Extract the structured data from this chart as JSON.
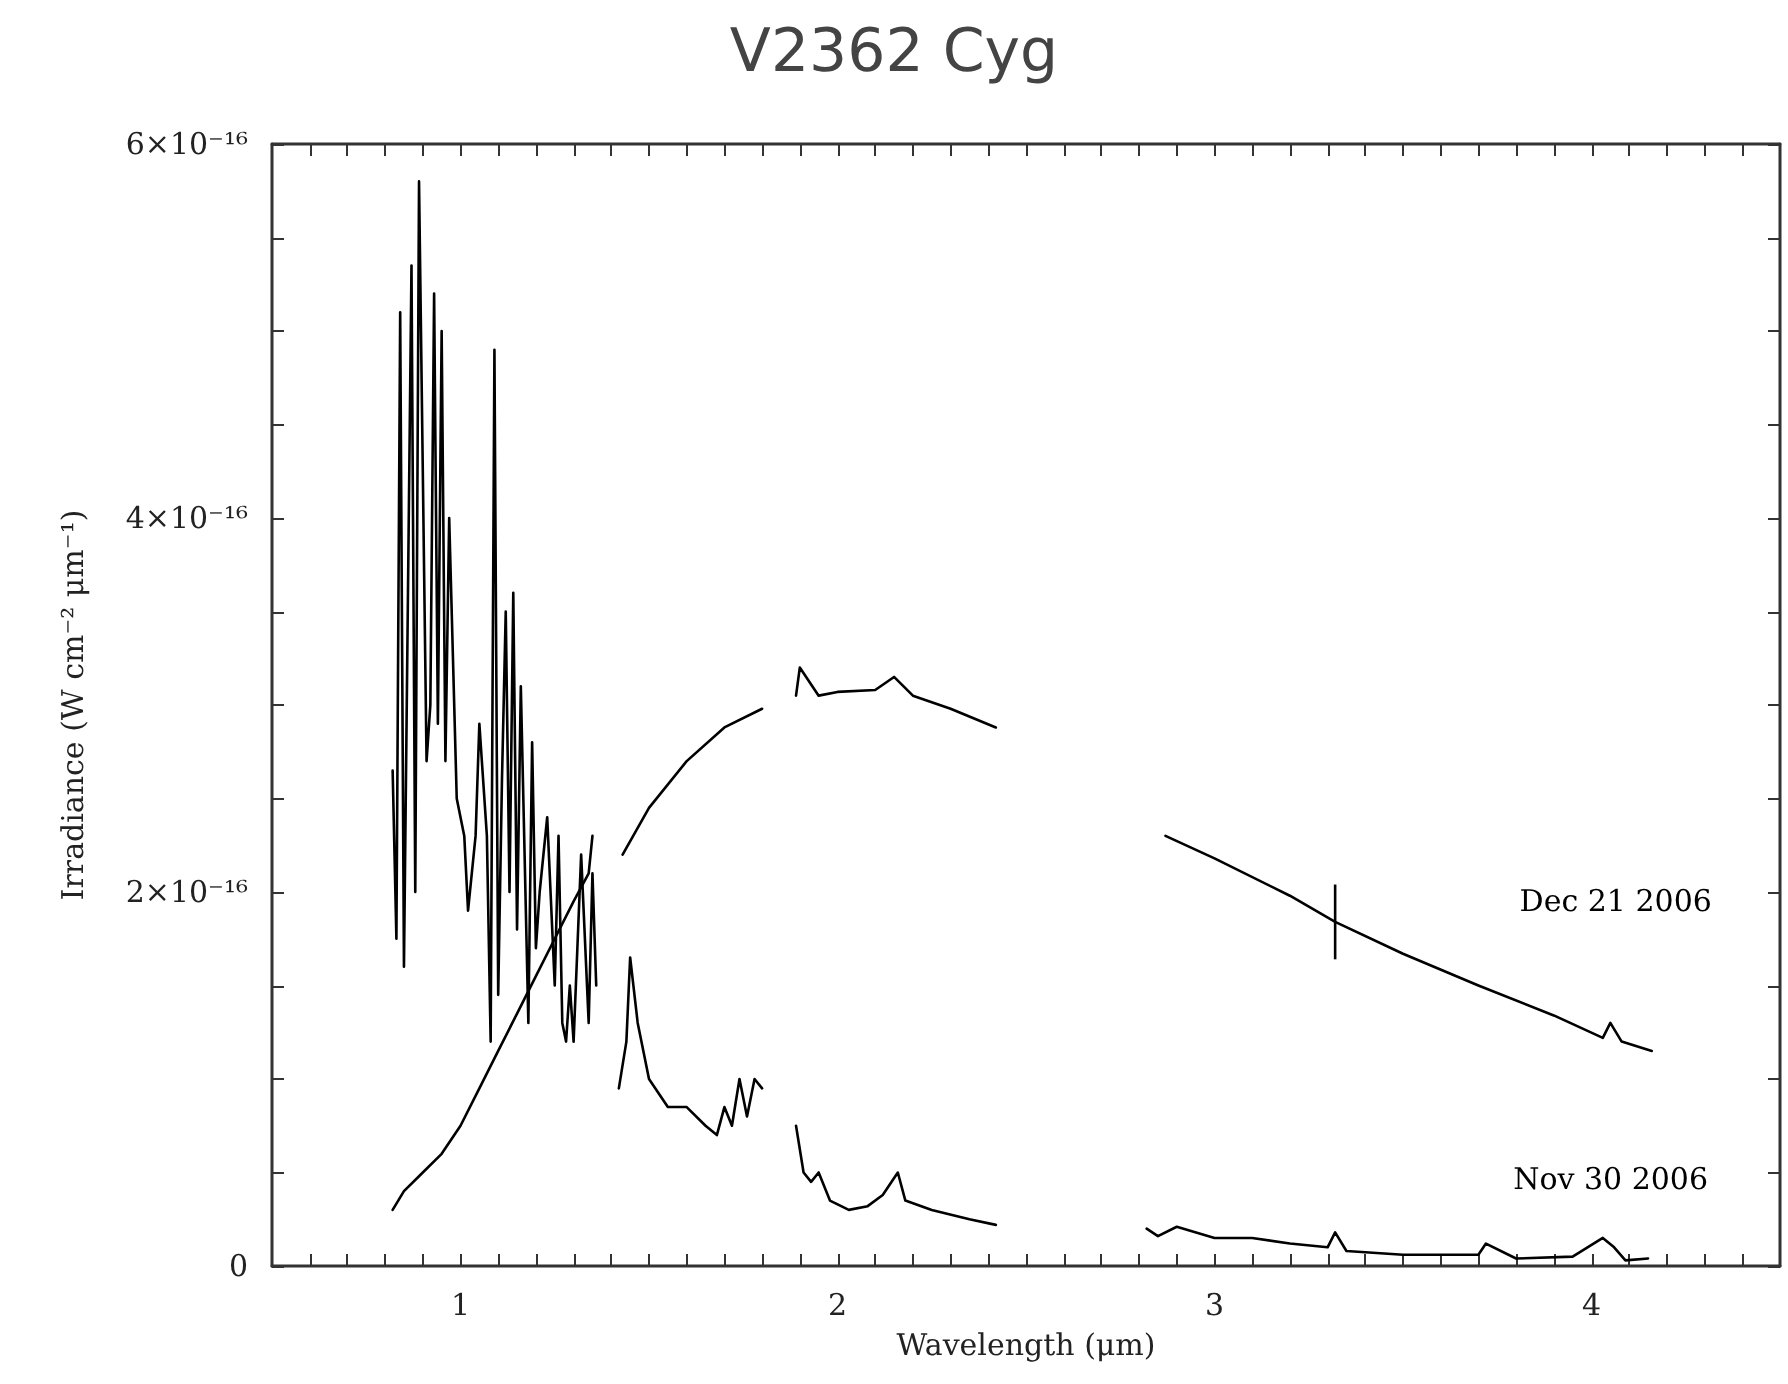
{
  "chart_data": {
    "type": "line",
    "title": "V2362 Cyg",
    "xlabel": "Wavelength (μm)",
    "ylabel": "Irradiance (W cm⁻² μm⁻¹)",
    "xlim": [
      0.5,
      4.5
    ],
    "ylim": [
      0,
      6e-16
    ],
    "xticks": [
      {
        "value": 0.6,
        "label": null
      },
      {
        "value": 0.7,
        "label": null
      },
      {
        "value": 0.8,
        "label": null
      },
      {
        "value": 0.9,
        "label": null
      },
      1,
      {
        "value": 1.1,
        "label": null
      },
      {
        "value": 1.2,
        "label": null
      },
      {
        "value": 1.3,
        "label": null
      },
      {
        "value": 1.4,
        "label": null
      },
      {
        "value": 1.5,
        "label": null
      },
      {
        "value": 1.6,
        "label": null
      },
      {
        "value": 1.7,
        "label": null
      },
      {
        "value": 1.8,
        "label": null
      },
      {
        "value": 1.9,
        "label": null
      },
      2,
      {
        "value": 2.1,
        "label": null
      },
      {
        "value": 2.2,
        "label": null
      },
      {
        "value": 2.3,
        "label": null
      },
      {
        "value": 2.4,
        "label": null
      },
      {
        "value": 2.5,
        "label": null
      },
      {
        "value": 2.6,
        "label": null
      },
      {
        "value": 2.7,
        "label": null
      },
      {
        "value": 2.8,
        "label": null
      },
      {
        "value": 2.9,
        "label": null
      },
      3,
      {
        "value": 3.1,
        "label": null
      },
      {
        "value": 3.2,
        "label": null
      },
      {
        "value": 3.3,
        "label": null
      },
      {
        "value": 3.4,
        "label": null
      },
      {
        "value": 3.5,
        "label": null
      },
      {
        "value": 3.6,
        "label": null
      },
      {
        "value": 3.7,
        "label": null
      },
      {
        "value": 3.8,
        "label": null
      },
      {
        "value": 3.9,
        "label": null
      },
      4,
      {
        "value": 4.1,
        "label": null
      },
      {
        "value": 4.2,
        "label": null
      },
      {
        "value": 4.3,
        "label": null
      },
      {
        "value": 4.4,
        "label": null
      }
    ],
    "yticks": [
      0,
      {
        "value": 5e-17,
        "label": null
      },
      {
        "value": 1e-16,
        "label": null
      },
      {
        "value": 1.5e-16,
        "label": null
      },
      {
        "value": 2e-16,
        "label": "2×10⁻¹⁶"
      },
      {
        "value": 2.5e-16,
        "label": null
      },
      {
        "value": 3e-16,
        "label": null
      },
      {
        "value": 3.5e-16,
        "label": null
      },
      {
        "value": 4e-16,
        "label": "4×10⁻¹⁶"
      },
      {
        "value": 4.5e-16,
        "label": null
      },
      {
        "value": 5e-16,
        "label": null
      },
      {
        "value": 5.5e-16,
        "label": null
      },
      {
        "value": 6e-16,
        "label": "6×10⁻¹⁶"
      }
    ],
    "grid": false,
    "legend": false,
    "marker": "none",
    "line_style": "solid",
    "series": [
      {
        "name": "Dec 21 2006",
        "color": "#000000",
        "x": [
          0.82,
          0.85,
          0.9,
          0.95,
          1.0,
          1.05,
          1.1,
          1.15,
          1.2,
          1.25,
          1.3,
          1.34,
          1.35,
          1.39,
          1.43,
          1.5,
          1.6,
          1.7,
          1.8,
          1.85,
          1.89,
          1.9,
          1.95,
          2.0,
          2.1,
          2.15,
          2.2,
          2.3,
          2.42,
          2.6,
          2.87,
          3.0,
          3.2,
          3.32,
          3.5,
          3.7,
          3.9,
          4.03,
          4.05,
          4.08,
          4.16
        ],
        "values": [
          3e-17,
          4e-17,
          5e-17,
          6e-17,
          7.5e-17,
          9.5e-17,
          1.15e-16,
          1.35e-16,
          1.55e-16,
          1.75e-16,
          1.95e-16,
          2.1e-16,
          2.3e-16,
          null,
          2.2e-16,
          2.45e-16,
          2.7e-16,
          2.88e-16,
          2.98e-16,
          null,
          3.05e-16,
          3.2e-16,
          3.05e-16,
          3.07e-16,
          3.08e-16,
          3.15e-16,
          3.05e-16,
          2.98e-16,
          2.88e-16,
          null,
          2.3e-16,
          2.18e-16,
          1.98e-16,
          1.84e-16,
          1.67e-16,
          1.5e-16,
          1.34e-16,
          1.22e-16,
          1.3e-16,
          1.2e-16,
          1.15e-16
        ],
        "errors": [
          null,
          null,
          null,
          null,
          null,
          null,
          null,
          null,
          null,
          null,
          null,
          null,
          null,
          null,
          null,
          null,
          null,
          null,
          null,
          null,
          null,
          null,
          null,
          null,
          null,
          null,
          null,
          null,
          null,
          null,
          null,
          null,
          null,
          2e-17,
          null,
          null,
          null,
          null,
          null,
          null,
          null
        ]
      },
      {
        "name": "Nov 30 2006",
        "color": "#000000",
        "x": [
          0.82,
          0.83,
          0.84,
          0.85,
          0.87,
          0.88,
          0.89,
          0.91,
          0.92,
          0.93,
          0.94,
          0.95,
          0.96,
          0.97,
          0.99,
          1.01,
          1.02,
          1.04,
          1.05,
          1.07,
          1.08,
          1.09,
          1.1,
          1.11,
          1.12,
          1.13,
          1.14,
          1.15,
          1.16,
          1.18,
          1.19,
          1.2,
          1.21,
          1.23,
          1.25,
          1.26,
          1.27,
          1.28,
          1.29,
          1.3,
          1.32,
          1.34,
          1.35,
          1.36,
          1.39,
          1.42,
          1.44,
          1.45,
          1.47,
          1.5,
          1.55,
          1.6,
          1.65,
          1.68,
          1.7,
          1.72,
          1.74,
          1.76,
          1.78,
          1.8,
          1.85,
          1.89,
          1.91,
          1.93,
          1.95,
          1.98,
          2.03,
          2.08,
          2.12,
          2.16,
          2.18,
          2.25,
          2.35,
          2.42,
          2.6,
          2.82,
          2.85,
          2.9,
          3.0,
          3.1,
          3.2,
          3.3,
          3.32,
          3.35,
          3.5,
          3.7,
          3.72,
          3.8,
          3.95,
          4.03,
          4.06,
          4.09,
          4.15
        ],
        "values": [
          2.65e-16,
          1.75e-16,
          5.1e-16,
          1.6e-16,
          5.35e-16,
          2e-16,
          5.8e-16,
          2.7e-16,
          3e-16,
          5.2e-16,
          2.9e-16,
          5e-16,
          2.7e-16,
          4e-16,
          2.5e-16,
          2.3e-16,
          1.9e-16,
          2.3e-16,
          2.9e-16,
          2.3e-16,
          1.2e-16,
          4.9e-16,
          1.45e-16,
          2.6e-16,
          3.5e-16,
          2e-16,
          3.6e-16,
          1.8e-16,
          3.1e-16,
          1.3e-16,
          2.8e-16,
          1.7e-16,
          2e-16,
          2.4e-16,
          1.5e-16,
          2.3e-16,
          1.3e-16,
          1.2e-16,
          1.5e-16,
          1.2e-16,
          2.2e-16,
          1.3e-16,
          2.1e-16,
          1.5e-16,
          null,
          9.5e-17,
          1.2e-16,
          1.65e-16,
          1.3e-16,
          1e-16,
          8.5e-17,
          8.5e-17,
          7.5e-17,
          7e-17,
          8.5e-17,
          7.5e-17,
          1e-16,
          8e-17,
          1e-16,
          9.5e-17,
          null,
          7.5e-17,
          5e-17,
          4.5e-17,
          5e-17,
          3.5e-17,
          3e-17,
          3.2e-17,
          3.8e-17,
          5e-17,
          3.5e-17,
          3e-17,
          2.5e-17,
          2.2e-17,
          null,
          2e-17,
          1.6e-17,
          2.1e-17,
          1.5e-17,
          1.5e-17,
          1.2e-17,
          1e-17,
          1.8e-17,
          8e-18,
          6e-18,
          6e-18,
          1.2e-17,
          4e-18,
          5e-18,
          1.5e-17,
          1e-17,
          3e-18,
          4e-18
        ]
      }
    ]
  }
}
